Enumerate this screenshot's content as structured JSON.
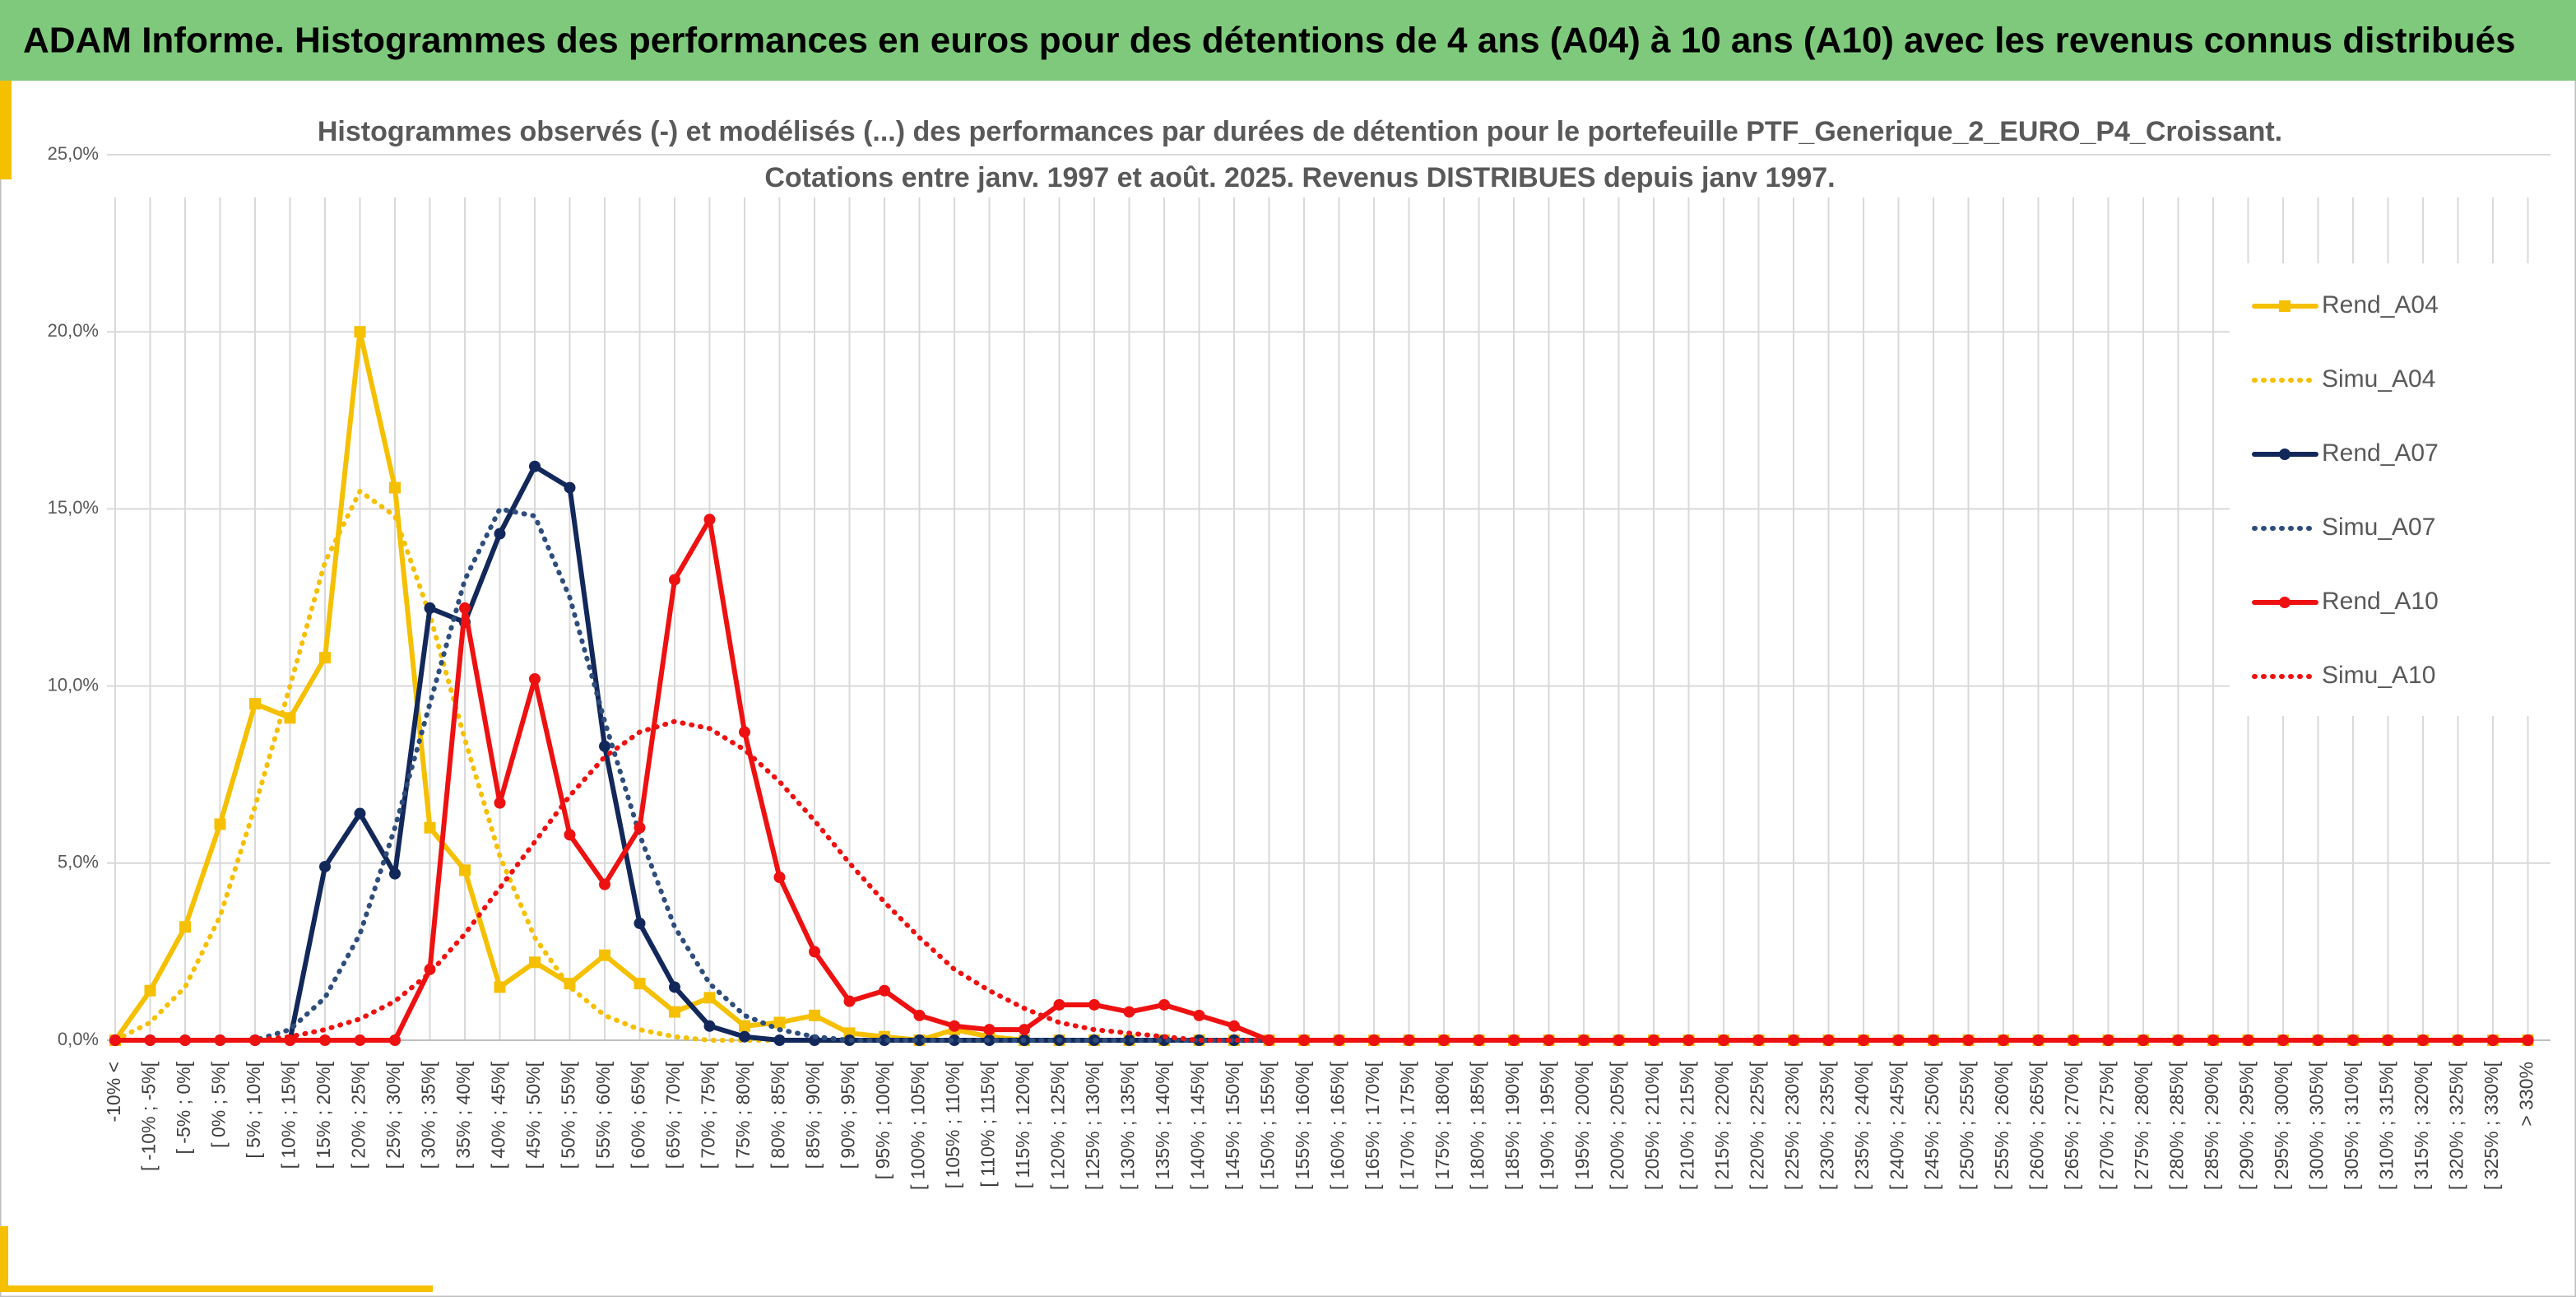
{
  "header": {
    "title": "ADAM Informe. Histogrammes des performances en euros pour des détentions de 4 ans (A04) à 10 ans (A10) avec les revenus connus distribués"
  },
  "chart_data": {
    "type": "line",
    "title": [
      "Histogrammes observés (-) et modélisés (...) des performances par durées de détention pour le portefeuille PTF_Generique_2_EURO_P4_Croissant.",
      "Cotations entre janv. 1997 et août. 2025. Revenus DISTRIBUES depuis janv 1997."
    ],
    "categories": [
      "-10% <",
      "[ -10% ; -5%[",
      "[ -5% ; 0%[",
      "[ 0% ; 5%[",
      "[ 5% ; 10%[",
      "[ 10% ; 15%[",
      "[ 15% ; 20%[",
      "[ 20% ; 25%[",
      "[ 25% ; 30%[",
      "[ 30% ; 35%[",
      "[ 35% ; 40%[",
      "[ 40% ; 45%[",
      "[ 45% ; 50%[",
      "[ 50% ; 55%[",
      "[ 55% ; 60%[",
      "[ 60% ; 65%[",
      "[ 65% ; 70%[",
      "[ 70% ; 75%[",
      "[ 75% ; 80%[",
      "[ 80% ; 85%[",
      "[ 85% ; 90%[",
      "[ 90% ; 95%[",
      "[ 95% ; 100%[",
      "[ 100% ; 105%[",
      "[ 105% ; 110%[",
      "[ 110% ; 115%[",
      "[ 115% ; 120%[",
      "[ 120% ; 125%[",
      "[ 125% ; 130%[",
      "[ 130% ; 135%[",
      "[ 135% ; 140%[",
      "[ 140% ; 145%[",
      "[ 145% ; 150%[",
      "[ 150% ; 155%[",
      "[ 155% ; 160%[",
      "[ 160% ; 165%[",
      "[ 165% ; 170%[",
      "[ 170% ; 175%[",
      "[ 175% ; 180%[",
      "[ 180% ; 185%[",
      "[ 185% ; 190%[",
      "[ 190% ; 195%[",
      "[ 195% ; 200%[",
      "[ 200% ; 205%[",
      "[ 205% ; 210%[",
      "[ 210% ; 215%[",
      "[ 215% ; 220%[",
      "[ 220% ; 225%[",
      "[ 225% ; 230%[",
      "[ 230% ; 235%[",
      "[ 235% ; 240%[",
      "[ 240% ; 245%[",
      "[ 245% ; 250%[",
      "[ 250% ; 255%[",
      "[ 255% ; 260%[",
      "[ 260% ; 265%[",
      "[ 265% ; 270%[",
      "[ 270% ; 275%[",
      "[ 275% ; 280%[",
      "[ 280% ; 285%[",
      "[ 285% ; 290%[",
      "[ 290% ; 295%[",
      "[ 295% ; 300%[",
      "[ 300% ; 305%[",
      "[ 305% ; 310%[",
      "[ 310% ; 315%[",
      "[ 315% ; 320%[",
      "[ 320% ; 325%[",
      "[ 325% ; 330%[",
      "> 330%"
    ],
    "series": [
      {
        "name": "Rend_A04",
        "color": "#f5c000",
        "style": "solid",
        "marker": "square",
        "values": [
          0,
          1.4,
          3.2,
          6.1,
          9.5,
          9.1,
          10.8,
          20.0,
          15.6,
          6.0,
          4.8,
          1.5,
          2.2,
          1.6,
          2.4,
          1.6,
          0.8,
          1.2,
          0.4,
          0.5,
          0.7,
          0.2,
          0.1,
          0,
          0.3,
          0.1,
          0,
          0,
          0,
          0,
          0,
          0,
          0,
          0,
          0,
          0,
          0,
          0,
          0,
          0,
          0,
          0,
          0,
          0,
          0,
          0,
          0,
          0,
          0,
          0,
          0,
          0,
          0,
          0,
          0,
          0,
          0,
          0,
          0,
          0,
          0,
          0,
          0,
          0,
          0,
          0,
          0,
          0,
          0,
          0
        ]
      },
      {
        "name": "Simu_A04",
        "color": "#f5c000",
        "style": "dotted",
        "values": [
          0,
          0.5,
          1.5,
          3.5,
          6.6,
          10.0,
          13.5,
          15.5,
          14.8,
          12.0,
          8.5,
          5.2,
          2.9,
          1.5,
          0.7,
          0.3,
          0.1,
          0,
          0,
          0,
          0,
          0,
          0,
          0,
          0,
          0,
          0,
          0,
          0,
          0,
          0,
          0,
          0,
          0,
          0,
          0,
          0,
          0,
          0,
          0,
          0,
          0,
          0,
          0,
          0,
          0,
          0,
          0,
          0,
          0,
          0,
          0,
          0,
          0,
          0,
          0,
          0,
          0,
          0,
          0,
          0,
          0,
          0,
          0,
          0,
          0,
          0,
          0,
          0,
          0
        ]
      },
      {
        "name": "Rend_A07",
        "color": "#13285a",
        "style": "solid",
        "marker": "circle",
        "values": [
          0,
          0,
          0,
          0,
          0,
          0,
          4.9,
          6.4,
          4.7,
          12.2,
          11.8,
          14.3,
          16.2,
          15.6,
          8.3,
          3.3,
          1.5,
          0.4,
          0.1,
          0,
          0,
          0,
          0,
          0,
          0,
          0,
          0,
          0,
          0,
          0,
          0,
          0,
          0,
          0,
          0,
          0,
          0,
          0,
          0,
          0,
          0,
          0,
          0,
          0,
          0,
          0,
          0,
          0,
          0,
          0,
          0,
          0,
          0,
          0,
          0,
          0,
          0,
          0,
          0,
          0,
          0,
          0,
          0,
          0,
          0,
          0,
          0,
          0,
          0,
          0
        ]
      },
      {
        "name": "Simu_A07",
        "color": "#2e4d7b",
        "style": "dotted",
        "values": [
          0,
          0,
          0,
          0,
          0,
          0.3,
          1.2,
          3.0,
          6.0,
          9.5,
          13.0,
          15.0,
          14.8,
          12.5,
          9.0,
          5.8,
          3.2,
          1.6,
          0.7,
          0.3,
          0.1,
          0,
          0,
          0,
          0,
          0,
          0,
          0,
          0,
          0,
          0,
          0,
          0,
          0,
          0,
          0,
          0,
          0,
          0,
          0,
          0,
          0,
          0,
          0,
          0,
          0,
          0,
          0,
          0,
          0,
          0,
          0,
          0,
          0,
          0,
          0,
          0,
          0,
          0,
          0,
          0,
          0,
          0,
          0,
          0,
          0,
          0,
          0,
          0,
          0
        ]
      },
      {
        "name": "Rend_A10",
        "color": "#ee1111",
        "style": "solid",
        "marker": "circle",
        "values": [
          0,
          0,
          0,
          0,
          0,
          0,
          0,
          0,
          0,
          2.0,
          12.2,
          6.7,
          10.2,
          5.8,
          4.4,
          6.0,
          13.0,
          14.7,
          8.7,
          4.6,
          2.5,
          1.1,
          1.4,
          0.7,
          0.4,
          0.3,
          0.3,
          1.0,
          1.0,
          0.8,
          1.0,
          0.7,
          0.4,
          0,
          0,
          0,
          0,
          0,
          0,
          0,
          0,
          0,
          0,
          0,
          0,
          0,
          0,
          0,
          0,
          0,
          0,
          0,
          0,
          0,
          0,
          0,
          0,
          0,
          0,
          0,
          0,
          0,
          0,
          0,
          0,
          0,
          0,
          0,
          0,
          0
        ]
      },
      {
        "name": "Simu_A10",
        "color": "#ee1111",
        "style": "dotted",
        "values": [
          0,
          0,
          0,
          0,
          0,
          0.1,
          0.3,
          0.6,
          1.1,
          1.9,
          3.0,
          4.3,
          5.6,
          6.9,
          8.0,
          8.7,
          9.0,
          8.8,
          8.2,
          7.3,
          6.2,
          5.0,
          3.9,
          2.9,
          2.0,
          1.4,
          0.9,
          0.5,
          0.3,
          0.2,
          0.1,
          0,
          0,
          0,
          0,
          0,
          0,
          0,
          0,
          0,
          0,
          0,
          0,
          0,
          0,
          0,
          0,
          0,
          0,
          0,
          0,
          0,
          0,
          0,
          0,
          0,
          0,
          0,
          0,
          0,
          0,
          0,
          0,
          0,
          0,
          0,
          0,
          0,
          0,
          0
        ]
      }
    ],
    "ylim": [
      0,
      25
    ],
    "yticks": [
      {
        "value": 0,
        "label": "0,0%"
      },
      {
        "value": 5,
        "label": "5,0%"
      },
      {
        "value": 10,
        "label": "10,0%"
      },
      {
        "value": 15,
        "label": "15,0%"
      },
      {
        "value": 20,
        "label": "20,0%"
      },
      {
        "value": 25,
        "label": "25,0%"
      }
    ],
    "grid": true,
    "legend": "right"
  }
}
